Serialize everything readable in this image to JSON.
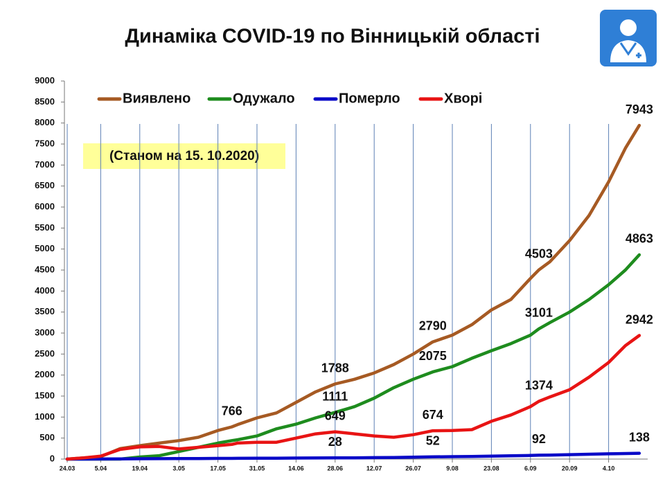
{
  "chart_data": {
    "type": "line",
    "title": "Динаміка COVID-19 по Вінницькій області",
    "subtitle": "(Станом на 15. 10.2020)",
    "x": [
      0,
      6,
      12,
      19,
      26,
      33,
      40,
      47,
      54,
      59,
      61,
      68,
      75,
      82,
      89,
      96,
      103,
      110,
      117,
      124,
      131,
      138,
      145,
      152,
      159,
      166,
      169,
      173,
      180,
      187,
      194,
      200,
      205
    ],
    "xlim": [
      -1,
      208
    ],
    "xticks": [
      {
        "value": 0,
        "label": "24.03"
      },
      {
        "value": 12,
        "label": "5.04"
      },
      {
        "value": 26,
        "label": "19.04"
      },
      {
        "value": 40,
        "label": "3.05"
      },
      {
        "value": 54,
        "label": "17.05"
      },
      {
        "value": 68,
        "label": "31.05"
      },
      {
        "value": 82,
        "label": "14.06"
      },
      {
        "value": 96,
        "label": "28.06"
      },
      {
        "value": 110,
        "label": "12.07"
      },
      {
        "value": 124,
        "label": "26.07"
      },
      {
        "value": 138,
        "label": "9.08"
      },
      {
        "value": 152,
        "label": "23.08"
      },
      {
        "value": 166,
        "label": "6.09"
      },
      {
        "value": 180,
        "label": "20.09"
      },
      {
        "value": 194,
        "label": "4.10"
      }
    ],
    "ylim": [
      0,
      9000
    ],
    "yticks": [
      0,
      500,
      1000,
      1500,
      2000,
      2500,
      3000,
      3500,
      4000,
      4500,
      5000,
      5500,
      6000,
      6500,
      7000,
      7500,
      8000,
      8500,
      9000
    ],
    "grid": true,
    "series": [
      {
        "name": "Виявлено",
        "color": "#a65a23",
        "values": [
          0,
          30,
          60,
          250,
          320,
          380,
          440,
          520,
          680,
          766,
          820,
          980,
          1100,
          1350,
          1600,
          1788,
          1900,
          2050,
          2250,
          2500,
          2790,
          2950,
          3200,
          3550,
          3800,
          4300,
          4503,
          4700,
          5200,
          5800,
          6600,
          7400,
          7943
        ],
        "value_labels": [
          null,
          null,
          null,
          null,
          null,
          null,
          null,
          null,
          null,
          "766",
          null,
          null,
          null,
          null,
          null,
          "1788",
          null,
          null,
          null,
          null,
          "2790",
          null,
          null,
          null,
          null,
          null,
          "4503",
          null,
          null,
          null,
          null,
          null,
          "7943"
        ]
      },
      {
        "name": "Одужало",
        "color": "#1e8c1e",
        "values": [
          0,
          0,
          0,
          0,
          50,
          80,
          180,
          280,
          380,
          440,
          460,
          550,
          720,
          830,
          980,
          1111,
          1250,
          1450,
          1700,
          1900,
          2075,
          2200,
          2400,
          2580,
          2750,
          2950,
          3101,
          3250,
          3500,
          3800,
          4150,
          4500,
          4863
        ],
        "value_labels": [
          null,
          null,
          null,
          null,
          null,
          null,
          null,
          null,
          null,
          null,
          null,
          null,
          null,
          null,
          null,
          "1111",
          null,
          null,
          null,
          null,
          "2075",
          null,
          null,
          null,
          null,
          null,
          "3101",
          null,
          null,
          null,
          null,
          null,
          "4863"
        ]
      },
      {
        "name": "Померло",
        "color": "#0a0ac8",
        "values": [
          0,
          0,
          2,
          5,
          8,
          10,
          12,
          14,
          16,
          17,
          18,
          20,
          22,
          24,
          26,
          28,
          30,
          34,
          38,
          44,
          52,
          58,
          63,
          70,
          78,
          86,
          92,
          96,
          105,
          115,
          125,
          132,
          138
        ],
        "value_labels": [
          null,
          null,
          null,
          null,
          null,
          null,
          null,
          null,
          null,
          null,
          null,
          null,
          null,
          null,
          null,
          "28",
          null,
          null,
          null,
          null,
          "52",
          null,
          null,
          null,
          null,
          null,
          "92",
          null,
          null,
          null,
          null,
          null,
          "138"
        ]
      },
      {
        "name": "Хворі",
        "color": "#e81414",
        "values": [
          0,
          30,
          70,
          230,
          290,
          300,
          240,
          280,
          320,
          350,
          380,
          400,
          400,
          500,
          600,
          649,
          600,
          550,
          520,
          580,
          674,
          680,
          700,
          900,
          1050,
          1250,
          1374,
          1480,
          1650,
          1950,
          2300,
          2700,
          2942
        ],
        "value_labels": [
          null,
          null,
          null,
          null,
          null,
          null,
          null,
          null,
          null,
          null,
          null,
          null,
          null,
          null,
          null,
          "649",
          null,
          null,
          null,
          null,
          "674",
          null,
          null,
          null,
          null,
          null,
          "1374",
          null,
          null,
          null,
          null,
          null,
          "2942"
        ]
      }
    ]
  }
}
